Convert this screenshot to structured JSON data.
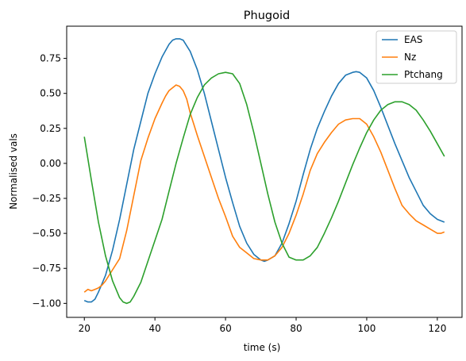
{
  "chart_data": {
    "type": "line",
    "title": "Phugoid",
    "xlabel": "time (s)",
    "ylabel": "Normalised vals",
    "xlim": [
      15,
      127
    ],
    "ylim": [
      -1.1,
      0.98
    ],
    "xticks": [
      20,
      40,
      60,
      80,
      100,
      120
    ],
    "yticks": [
      -1.0,
      -0.75,
      -0.5,
      -0.25,
      0.0,
      0.25,
      0.5,
      0.75
    ],
    "xtick_labels": [
      "20",
      "40",
      "60",
      "80",
      "100",
      "120"
    ],
    "ytick_labels": [
      "−1.00",
      "−0.75",
      "−0.50",
      "−0.25",
      "0.00",
      "0.25",
      "0.50",
      "0.75"
    ],
    "grid": false,
    "legend_position": "top-right",
    "series": [
      {
        "name": "EAS",
        "color": "#1f77b4",
        "points": [
          [
            20,
            -0.98
          ],
          [
            21,
            -0.99
          ],
          [
            22,
            -0.99
          ],
          [
            23,
            -0.97
          ],
          [
            24,
            -0.92
          ],
          [
            26,
            -0.8
          ],
          [
            28,
            -0.62
          ],
          [
            30,
            -0.4
          ],
          [
            32,
            -0.15
          ],
          [
            34,
            0.1
          ],
          [
            36,
            0.3
          ],
          [
            38,
            0.5
          ],
          [
            40,
            0.64
          ],
          [
            42,
            0.76
          ],
          [
            44,
            0.85
          ],
          [
            45,
            0.88
          ],
          [
            46,
            0.89
          ],
          [
            47,
            0.89
          ],
          [
            48,
            0.88
          ],
          [
            50,
            0.8
          ],
          [
            52,
            0.67
          ],
          [
            54,
            0.5
          ],
          [
            56,
            0.3
          ],
          [
            58,
            0.1
          ],
          [
            60,
            -0.1
          ],
          [
            62,
            -0.28
          ],
          [
            64,
            -0.45
          ],
          [
            66,
            -0.57
          ],
          [
            68,
            -0.65
          ],
          [
            70,
            -0.69
          ],
          [
            71,
            -0.7
          ],
          [
            72,
            -0.69
          ],
          [
            74,
            -0.66
          ],
          [
            76,
            -0.57
          ],
          [
            78,
            -0.43
          ],
          [
            80,
            -0.27
          ],
          [
            82,
            -0.08
          ],
          [
            84,
            0.1
          ],
          [
            86,
            0.25
          ],
          [
            88,
            0.37
          ],
          [
            90,
            0.48
          ],
          [
            92,
            0.57
          ],
          [
            94,
            0.63
          ],
          [
            96,
            0.65
          ],
          [
            97,
            0.655
          ],
          [
            98,
            0.65
          ],
          [
            100,
            0.61
          ],
          [
            102,
            0.52
          ],
          [
            104,
            0.4
          ],
          [
            106,
            0.27
          ],
          [
            108,
            0.14
          ],
          [
            110,
            0.02
          ],
          [
            112,
            -0.1
          ],
          [
            114,
            -0.2
          ],
          [
            116,
            -0.3
          ],
          [
            118,
            -0.36
          ],
          [
            120,
            -0.4
          ],
          [
            122,
            -0.42
          ]
        ]
      },
      {
        "name": "Nz",
        "color": "#ff7f0e",
        "points": [
          [
            20,
            -0.92
          ],
          [
            21,
            -0.9
          ],
          [
            22,
            -0.91
          ],
          [
            23,
            -0.9
          ],
          [
            24,
            -0.89
          ],
          [
            25,
            -0.87
          ],
          [
            26,
            -0.84
          ],
          [
            28,
            -0.76
          ],
          [
            30,
            -0.68
          ],
          [
            32,
            -0.48
          ],
          [
            34,
            -0.23
          ],
          [
            36,
            0.02
          ],
          [
            38,
            0.18
          ],
          [
            40,
            0.32
          ],
          [
            42,
            0.43
          ],
          [
            43,
            0.48
          ],
          [
            44,
            0.52
          ],
          [
            45,
            0.54
          ],
          [
            46,
            0.56
          ],
          [
            47,
            0.55
          ],
          [
            48,
            0.52
          ],
          [
            49,
            0.46
          ],
          [
            50,
            0.36
          ],
          [
            51,
            0.28
          ],
          [
            52,
            0.2
          ],
          [
            54,
            0.05
          ],
          [
            56,
            -0.1
          ],
          [
            58,
            -0.25
          ],
          [
            60,
            -0.38
          ],
          [
            62,
            -0.52
          ],
          [
            64,
            -0.6
          ],
          [
            66,
            -0.64
          ],
          [
            68,
            -0.68
          ],
          [
            70,
            -0.69
          ],
          [
            72,
            -0.69
          ],
          [
            74,
            -0.66
          ],
          [
            76,
            -0.6
          ],
          [
            78,
            -0.5
          ],
          [
            80,
            -0.37
          ],
          [
            82,
            -0.22
          ],
          [
            84,
            -0.05
          ],
          [
            86,
            0.07
          ],
          [
            88,
            0.15
          ],
          [
            90,
            0.22
          ],
          [
            92,
            0.28
          ],
          [
            94,
            0.31
          ],
          [
            96,
            0.32
          ],
          [
            98,
            0.32
          ],
          [
            100,
            0.28
          ],
          [
            102,
            0.19
          ],
          [
            104,
            0.08
          ],
          [
            106,
            -0.05
          ],
          [
            108,
            -0.18
          ],
          [
            110,
            -0.3
          ],
          [
            112,
            -0.36
          ],
          [
            114,
            -0.41
          ],
          [
            116,
            -0.44
          ],
          [
            118,
            -0.47
          ],
          [
            120,
            -0.5
          ],
          [
            121,
            -0.5
          ],
          [
            122,
            -0.49
          ]
        ]
      },
      {
        "name": "Ptchang",
        "color": "#2ca02c",
        "points": [
          [
            20,
            0.19
          ],
          [
            22,
            -0.12
          ],
          [
            24,
            -0.42
          ],
          [
            26,
            -0.66
          ],
          [
            28,
            -0.84
          ],
          [
            30,
            -0.96
          ],
          [
            31,
            -0.99
          ],
          [
            32,
            -1.0
          ],
          [
            33,
            -0.99
          ],
          [
            34,
            -0.95
          ],
          [
            36,
            -0.85
          ],
          [
            38,
            -0.7
          ],
          [
            40,
            -0.55
          ],
          [
            42,
            -0.4
          ],
          [
            44,
            -0.2
          ],
          [
            46,
            0.0
          ],
          [
            48,
            0.18
          ],
          [
            50,
            0.35
          ],
          [
            52,
            0.47
          ],
          [
            54,
            0.56
          ],
          [
            56,
            0.61
          ],
          [
            58,
            0.64
          ],
          [
            60,
            0.65
          ],
          [
            62,
            0.64
          ],
          [
            64,
            0.57
          ],
          [
            66,
            0.42
          ],
          [
            68,
            0.22
          ],
          [
            70,
            0.0
          ],
          [
            72,
            -0.22
          ],
          [
            74,
            -0.42
          ],
          [
            76,
            -0.57
          ],
          [
            78,
            -0.67
          ],
          [
            80,
            -0.69
          ],
          [
            82,
            -0.69
          ],
          [
            84,
            -0.66
          ],
          [
            86,
            -0.6
          ],
          [
            88,
            -0.5
          ],
          [
            90,
            -0.39
          ],
          [
            92,
            -0.27
          ],
          [
            94,
            -0.14
          ],
          [
            96,
            -0.01
          ],
          [
            98,
            0.11
          ],
          [
            100,
            0.22
          ],
          [
            102,
            0.31
          ],
          [
            104,
            0.38
          ],
          [
            106,
            0.42
          ],
          [
            108,
            0.44
          ],
          [
            110,
            0.44
          ],
          [
            112,
            0.42
          ],
          [
            114,
            0.38
          ],
          [
            116,
            0.31
          ],
          [
            118,
            0.23
          ],
          [
            120,
            0.14
          ],
          [
            122,
            0.05
          ]
        ]
      }
    ]
  }
}
